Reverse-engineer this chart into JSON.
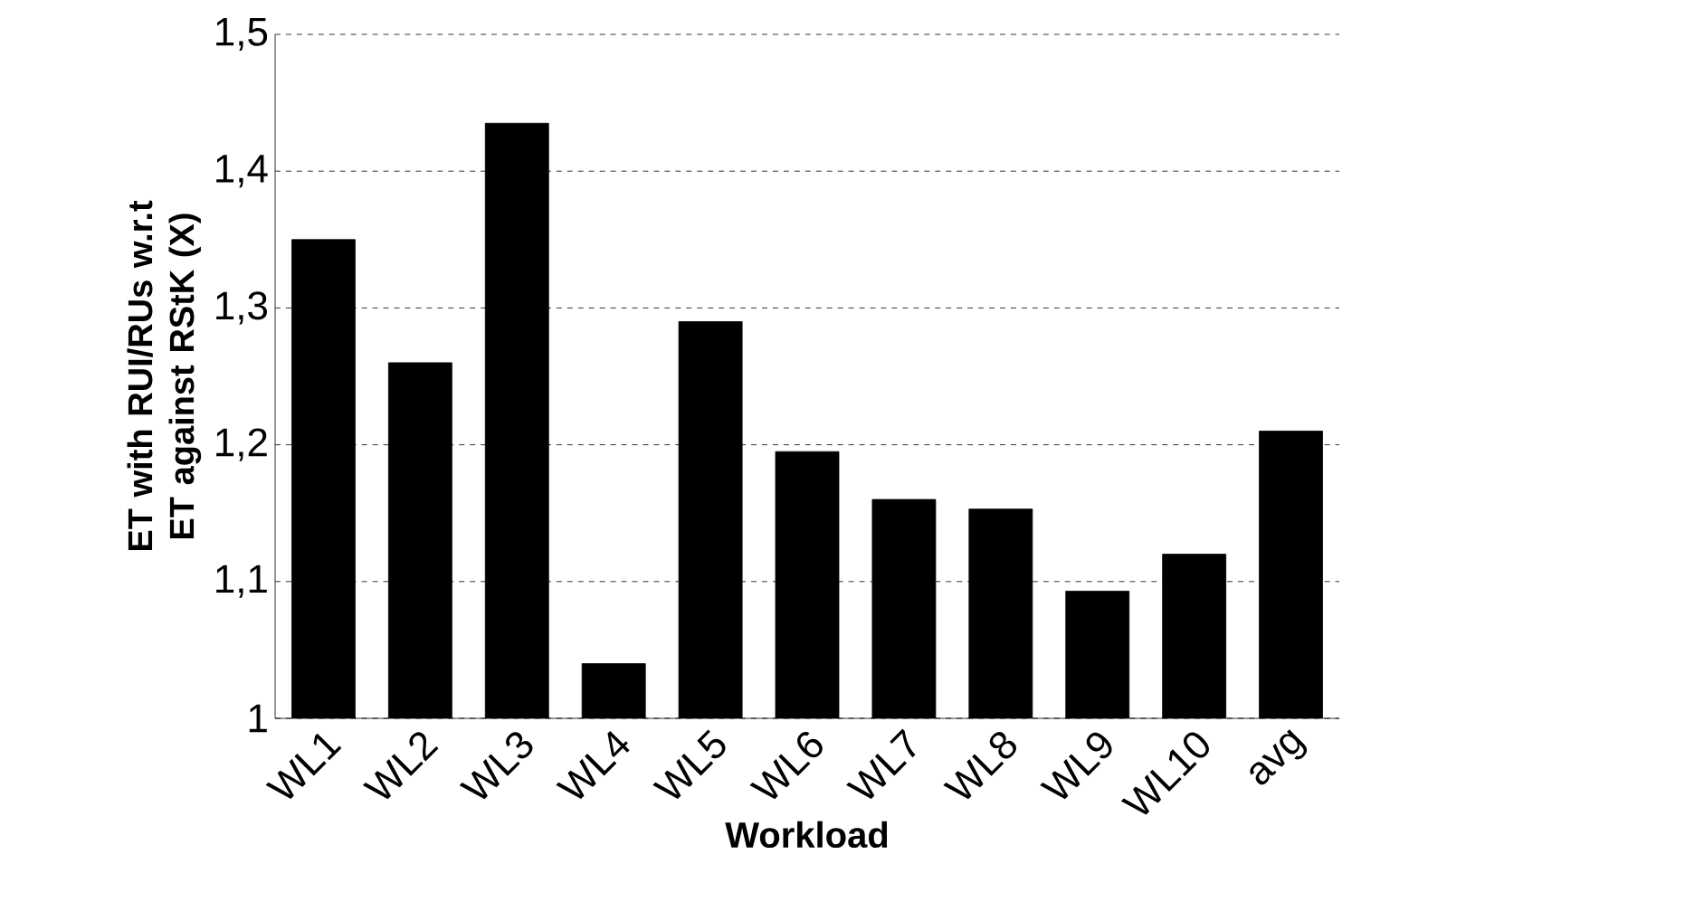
{
  "chart_data": {
    "type": "bar",
    "xlabel": "Workload",
    "ylabel": "ET with RUI/RUs w.r.t ET  against RStK (X)",
    "categories": [
      "WL1",
      "WL2",
      "WL3",
      "WL4",
      "WL5",
      "WL6",
      "WL7",
      "WL8",
      "WL9",
      "WL10",
      "avg"
    ],
    "values": [
      1.35,
      1.26,
      1.435,
      1.04,
      1.29,
      1.195,
      1.16,
      1.153,
      1.093,
      1.12,
      1.21
    ],
    "color": "#000000",
    "ylim": [
      1,
      1.5
    ],
    "yticks": [
      {
        "value": 1,
        "label": "1"
      },
      {
        "value": 1.1,
        "label": "1,1"
      },
      {
        "value": 1.2,
        "label": "1,2"
      },
      {
        "value": 1.3,
        "label": "1,3"
      },
      {
        "value": 1.4,
        "label": "1,4"
      },
      {
        "value": 1.5,
        "label": "1,5"
      }
    ],
    "grid": "y"
  }
}
